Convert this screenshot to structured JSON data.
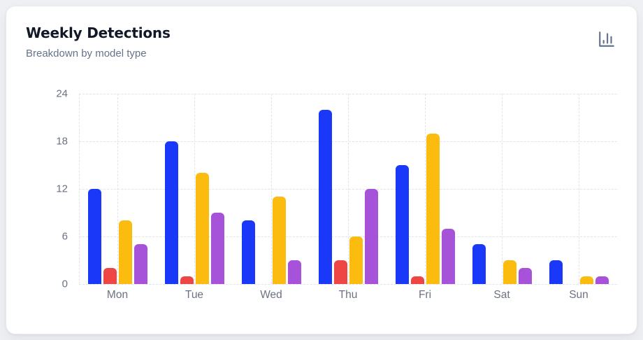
{
  "card": {
    "title": "Weekly Detections",
    "subtitle": "Breakdown by model type",
    "icon": "bar-chart-icon",
    "background": "#ffffff",
    "page_background": "#eef0f4"
  },
  "chart_data": {
    "type": "bar",
    "title": "Weekly Detections",
    "subtitle": "Breakdown by model type",
    "categories": [
      "Mon",
      "Tue",
      "Wed",
      "Thu",
      "Fri",
      "Sat",
      "Sun"
    ],
    "series": [
      {
        "name": "blue",
        "color": "#1a38f8",
        "values": [
          12,
          18,
          8,
          22,
          15,
          5,
          3
        ]
      },
      {
        "name": "red",
        "color": "#ee4545",
        "values": [
          2,
          1,
          0,
          3,
          1,
          0,
          0
        ]
      },
      {
        "name": "amber",
        "color": "#fcbb0f",
        "values": [
          8,
          14,
          11,
          6,
          19,
          3,
          1
        ]
      },
      {
        "name": "purple",
        "color": "#a653d9",
        "values": [
          5,
          9,
          3,
          12,
          7,
          2,
          1
        ]
      }
    ],
    "xlabel": "",
    "ylabel": "",
    "ylim": [
      0,
      24
    ],
    "yticks": [
      0,
      6,
      12,
      18,
      24
    ],
    "grid": true,
    "grid_style": "dashed",
    "legend": false,
    "tick_color": "#6b7280",
    "grid_color": "#e0e3ea"
  }
}
